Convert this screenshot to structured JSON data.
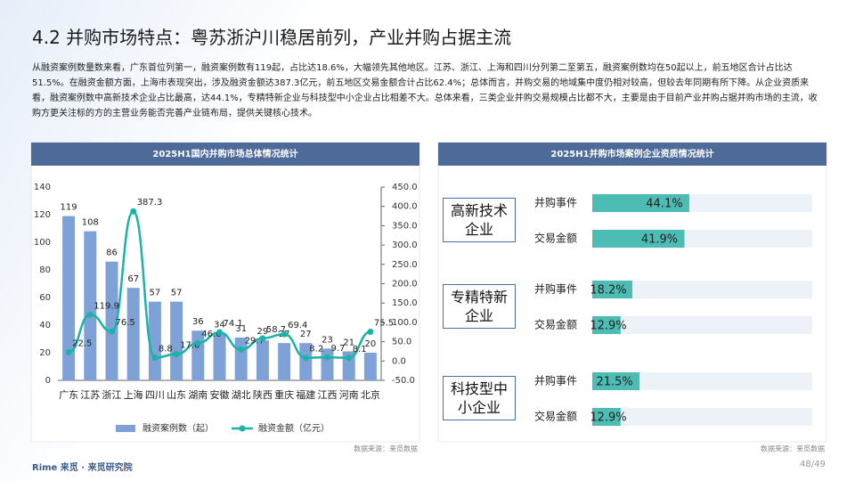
{
  "title": "4.2 并购市场特点：粤苏浙沪川稳居前列，产业并购占据主流",
  "body": "从融资案例数量数来看，广东首位列第一，融资案例数有119起，占比达18.6%，大幅领先其他地区。江苏、浙江、上海和四川分列第二至第五，融资案例数均在50起以上，前五地区合计占比达51.5%。在融资金额方面，上海市表现突出，涉及融资金额达387.3亿元，前五地区交易金额合计占比62.4%；总体而言，并购交易的地域集中度仍相对较高，但较去年同期有所下降。从企业资质来看，融资案例数中高新技术企业占比最高，达44.1%，专精特新企业与科技型中小企业占比相差不大。总体来看，三类企业并购交易规模占比都不大，主要是由于目前产业并购占据并购市场的主流，收购方更关注标的方的主营业务能否完善产业链布局，提供关键核心技术。",
  "chart_data": [
    {
      "type": "combo",
      "title": "2025H1国内并购市场总体情况统计",
      "categories": [
        "广东",
        "江苏",
        "浙江",
        "上海",
        "四川",
        "山东",
        "湖南",
        "安徽",
        "湖北",
        "陕西",
        "重庆",
        "福建",
        "江西",
        "河南",
        "北京"
      ],
      "series": [
        {
          "name": "融资案例数（起）",
          "type": "bar",
          "color": "#7ea2d8",
          "values": [
            119,
            108,
            86,
            67,
            57,
            57,
            36,
            34,
            31,
            29,
            27,
            27,
            23,
            21,
            20
          ]
        },
        {
          "name": "融资金额（亿元）",
          "type": "line",
          "axis": "y2",
          "color": "#1bb3a6",
          "values": [
            22.5,
            119.9,
            76.5,
            387.3,
            8.8,
            17.6,
            46.6,
            74.1,
            29.7,
            58.7,
            69.4,
            8.2,
            9.7,
            8.1,
            75.5
          ]
        }
      ],
      "ylim": [
        0,
        140
      ],
      "yticks": [
        0,
        20,
        40,
        60,
        80,
        100,
        120,
        140
      ],
      "y2lim": [
        -50,
        450
      ],
      "y2ticks": [
        {
          "value": -50,
          "label": "-50.0"
        },
        {
          "value": 0,
          "label": "0.0"
        },
        {
          "value": 50,
          "label": "50.0"
        },
        {
          "value": 100,
          "label": "100.0"
        },
        {
          "value": 150,
          "label": "150.0"
        },
        {
          "value": 200,
          "label": "200.0"
        },
        {
          "value": 250,
          "label": "250.0"
        },
        {
          "value": 300,
          "label": "300.0"
        },
        {
          "value": 350,
          "label": "350.0"
        },
        {
          "value": 400,
          "label": "400.0"
        },
        {
          "value": 450,
          "label": "450.0"
        }
      ],
      "legend": "bottom",
      "source": "数据来源：来觅数据"
    },
    {
      "type": "hbar",
      "title": "2025H1并购市场案例企业资质情况统计",
      "groups": [
        "高新技术企业",
        "专精特新企业",
        "科技型中小企业"
      ],
      "series": [
        {
          "name": "并购事件",
          "color": "#4dbcb4",
          "values": [
            44.1,
            18.2,
            21.5
          ],
          "value_labels": [
            "44.1%",
            "18.2%",
            "21.5%"
          ]
        },
        {
          "name": "交易金额",
          "color": "#4dbcb4",
          "values": [
            41.9,
            12.9,
            12.9
          ],
          "value_labels": [
            "41.9%",
            "12.9%",
            "12.9%"
          ]
        }
      ],
      "xlim": [
        0,
        100
      ],
      "source": "数据来源：来觅数据"
    }
  ],
  "footer": "Rime 来觅 · 来觅研究院",
  "page": "48/49"
}
